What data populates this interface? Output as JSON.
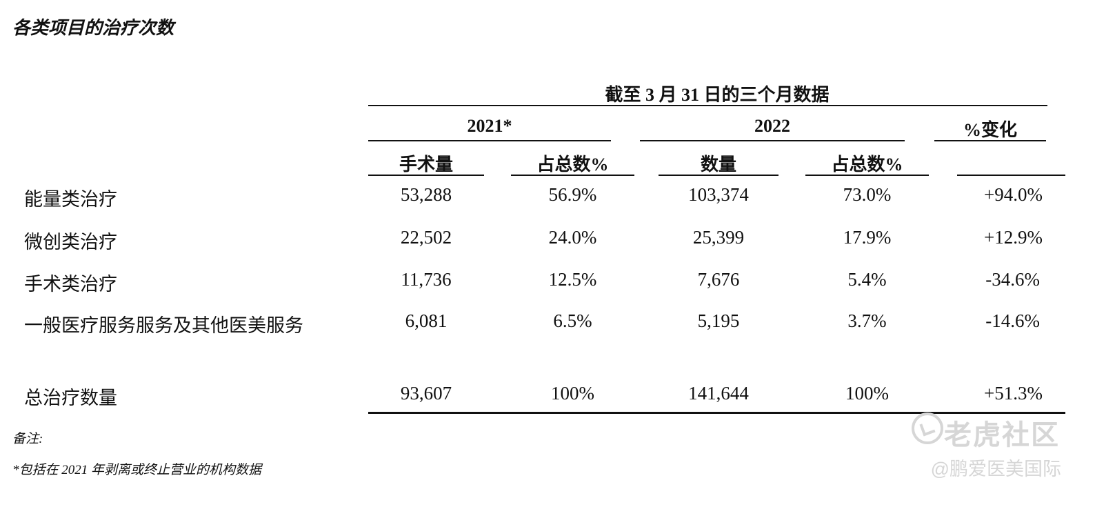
{
  "title": "各类项目的治疗次数",
  "period_header": "截至 3 月 31 日的三个月数据",
  "year_headers": {
    "y2021": "2021*",
    "y2022": "2022",
    "change": "%变化"
  },
  "column_headers": {
    "surgery_count": "手术量",
    "share_2021": "占总数%",
    "count_2022": "数量",
    "share_2022": "占总数%"
  },
  "rows": [
    {
      "label": "能量类治疗",
      "v2021": "53,288",
      "p2021": "56.9%",
      "v2022": "103,374",
      "p2022": "73.0%",
      "change": "+94.0%"
    },
    {
      "label": "微创类治疗",
      "v2021": "22,502",
      "p2021": "24.0%",
      "v2022": "25,399",
      "p2022": "17.9%",
      "change": "+12.9%"
    },
    {
      "label": "手术类治疗",
      "v2021": "11,736",
      "p2021": "12.5%",
      "v2022": "7,676",
      "p2022": "5.4%",
      "change": "-34.6%"
    },
    {
      "label": "一般医疗服务服务及其他医美服务",
      "v2021": "6,081",
      "p2021": "6.5%",
      "v2022": "5,195",
      "p2022": "3.7%",
      "change": "-14.6%"
    }
  ],
  "total": {
    "label": "总治疗数量",
    "v2021": "93,607",
    "p2021": "100%",
    "v2022": "141,644",
    "p2022": "100%",
    "change": "+51.3%"
  },
  "notes": {
    "heading": "备注:",
    "footnote": "*包括在 2021 年剥离或终止营业的机构数据"
  },
  "watermark": {
    "logo": "老虎社区",
    "author": "@鹏爱医美国际",
    "icon": "tiger-community-logo-icon"
  }
}
